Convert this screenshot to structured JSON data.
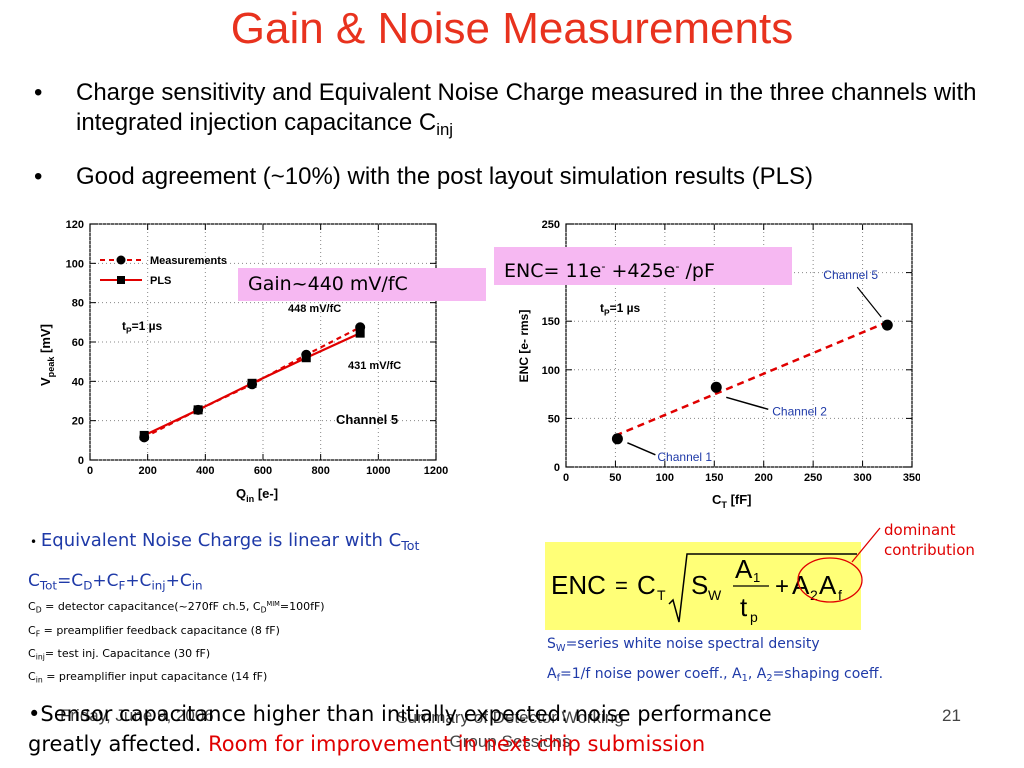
{
  "title": "Gain & Noise Measurements",
  "bullets": [
    {
      "text": "Charge sensitivity and Equivalent Noise Charge measured in the three channels with integrated injection capacitance C",
      "sub": "inj"
    },
    {
      "text": "Good agreement (~10%) with the post layout simulation results (PLS)"
    }
  ],
  "gain_box": "Gain~440 mV/fC",
  "enc_box": {
    "prefix": "ENC= 11e",
    "sup1": "-",
    "mid": " +425e",
    "sup2": "-",
    "suffix": " /pF"
  },
  "chart_data": [
    {
      "type": "line",
      "xlabel": "Q",
      "xlabel_sub": "in",
      "xlabel_suffix": " [e-]",
      "ylabel": "V",
      "ylabel_sub": "peak",
      "ylabel_suffix": " [mV]",
      "xlim": [
        0,
        1200
      ],
      "ylim": [
        0,
        120
      ],
      "xticks": [
        "0",
        "200",
        "400",
        "600",
        "800",
        "1000",
        "1200"
      ],
      "yticks": [
        "0",
        "20",
        "40",
        "60",
        "80",
        "100",
        "120"
      ],
      "legend": [
        "Measurements",
        "PLS"
      ],
      "legend_placement": "top-left",
      "annotations": {
        "tp": "t",
        "tp_sub": "P",
        "tp_suffix": "=1 µs",
        "gain_meas": "448 mV/fC",
        "gain_pls": "431 mV/fC",
        "channel": "Channel 5"
      },
      "series": [
        {
          "name": "Measurements",
          "style": "dashed-circle",
          "color": "#e00000",
          "x": [
            188,
            375,
            562,
            750,
            937
          ],
          "y": [
            11.5,
            25.5,
            38.5,
            53.5,
            67.5
          ]
        },
        {
          "name": "PLS",
          "style": "solid-square",
          "color": "#e00000",
          "x": [
            188,
            375,
            562,
            750,
            937
          ],
          "y": [
            12.5,
            25.5,
            39.0,
            52.0,
            64.5
          ]
        }
      ]
    },
    {
      "type": "scatter",
      "xlabel": "C",
      "xlabel_sub": "T",
      "xlabel_suffix": " [fF]",
      "ylabel": "ENC [e- rms]",
      "xlim": [
        0,
        350
      ],
      "ylim": [
        0,
        250
      ],
      "xticks": [
        "0",
        "50",
        "100",
        "150",
        "200",
        "250",
        "300",
        "350"
      ],
      "yticks": [
        "0",
        "50",
        "100",
        "150",
        "200",
        "250"
      ],
      "annotations": {
        "tp": "t",
        "tp_sub": "P",
        "tp_suffix": "=1 µs"
      },
      "points": [
        {
          "label": "Channel 1",
          "x": 52,
          "y": 29
        },
        {
          "label": "Channel 2",
          "x": 152,
          "y": 82
        },
        {
          "label": "Channel 5",
          "x": 325,
          "y": 146
        }
      ],
      "fit": {
        "intercept": 11,
        "slope": 0.425,
        "x_range": [
          50,
          325
        ],
        "color": "#e00000",
        "style": "dashed"
      }
    }
  ],
  "enc_linear": {
    "text": "Equivalent Noise Charge is linear with C",
    "sub": "Tot"
  },
  "ctot_formula": [
    {
      "t": "C"
    },
    {
      "s": "Tot"
    },
    {
      "t": "=C"
    },
    {
      "s": "D"
    },
    {
      "t": "+C"
    },
    {
      "s": "F"
    },
    {
      "t": "+C"
    },
    {
      "s": "inj"
    },
    {
      "t": "+C"
    },
    {
      "s": "in"
    }
  ],
  "definitions": [
    {
      "c": "C",
      "sub": "D",
      "text": " = detector capacitance(~270fF ch.5, C",
      "sub2": "D",
      "sup2": "MIM",
      "text2": "=100fF)"
    },
    {
      "c": "C",
      "sub": "F",
      "text": " = preamplifier feedback capacitance (8 fF)"
    },
    {
      "c": "C",
      "sub": "inj",
      "text": "= test inj. Capacitance (30 fF)"
    },
    {
      "c": "C",
      "sub": "in",
      "text": " = preamplifier input capacitance (14 fF)"
    }
  ],
  "formula": {
    "lhs": "ENC",
    "eq": "=",
    "c": "C",
    "c_sub": "T",
    "s": "S",
    "s_sub": "W",
    "num": "A",
    "num_sub": "1",
    "den": "t",
    "den_sub": "p",
    "plus": "+",
    "a2": "A",
    "a2_sub": "2",
    "af": "A",
    "af_sub": "f"
  },
  "dominant": "dominant contribution",
  "sw_def": {
    "s": "S",
    "sub": "W",
    "text": "=series white noise spectral density"
  },
  "af_def": {
    "a": "A",
    "sub": "f",
    "text": "=1/f noise power coeff., A",
    "sub1": "1",
    "text2": ", A",
    "sub2": "2",
    "text3": "=shaping coeff."
  },
  "conclusion": {
    "line1": "•Sensor capacitance higher than initially expected: noise performance",
    "line2a": "greatly affected.",
    "line2b": "Room for improvement in next chip submission"
  },
  "footer": {
    "date": "Friday, June 9, 2006",
    "center": "Summary of Detector Working Group Sessions",
    "page": "21"
  }
}
